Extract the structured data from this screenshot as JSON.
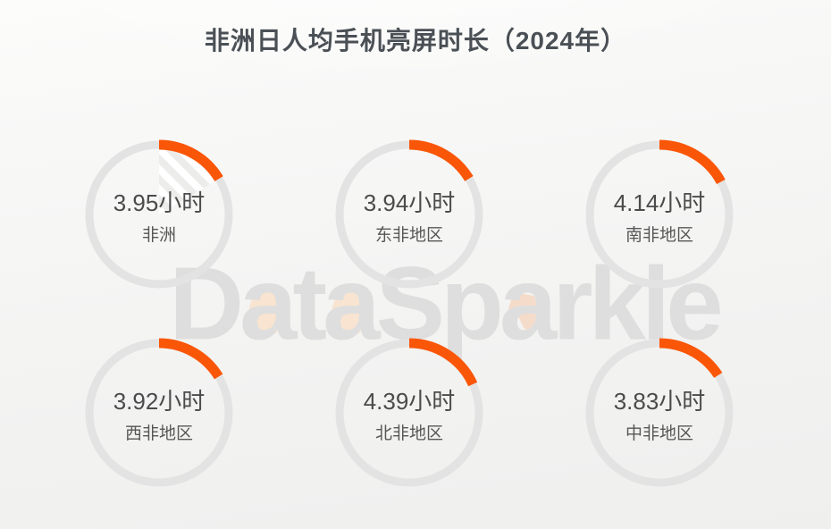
{
  "title": "非洲日人均手机亮屏时长（2024年）",
  "watermark": {
    "text": "DataSparkle",
    "parts": [
      "D",
      "a",
      "t",
      "a",
      "Sp",
      "a",
      "rkle"
    ]
  },
  "colors": {
    "accent": "#fa5607",
    "ring": "#e3e3e3",
    "title_text": "#4a5055",
    "value_text": "#4b4b4b",
    "label_text": "#575757",
    "watermark_gray": "#dbdbdb",
    "peach": "#f9e2cb",
    "peach_deep": "#f6d9c4",
    "hatch_light": "#ffffff",
    "hatch_gray": "#ececeb"
  },
  "chart_data": {
    "type": "pie",
    "subtype": "donut-gauge-grid",
    "title": "非洲日人均手机亮屏时长（2024年）",
    "unit": "小时",
    "gauge_scale_max_hours": 24,
    "arc_start": "12-oclock-clockwise",
    "legend_position": "none",
    "grid": "2 rows x 3 columns",
    "categories": [
      "非洲",
      "东非地区",
      "南非地区",
      "西非地区",
      "北非地区",
      "中非地区"
    ],
    "values": [
      3.95,
      3.94,
      4.14,
      3.92,
      4.39,
      3.83
    ],
    "items": [
      {
        "label": "非洲",
        "hours": 3.95,
        "value_label": "3.95小时",
        "hatched_wedge": true
      },
      {
        "label": "东非地区",
        "hours": 3.94,
        "value_label": "3.94小时",
        "hatched_wedge": false
      },
      {
        "label": "南非地区",
        "hours": 4.14,
        "value_label": "4.14小时",
        "hatched_wedge": false
      },
      {
        "label": "西非地区",
        "hours": 3.92,
        "value_label": "3.92小时",
        "hatched_wedge": false
      },
      {
        "label": "北非地区",
        "hours": 4.39,
        "value_label": "4.39小时",
        "hatched_wedge": false
      },
      {
        "label": "中非地区",
        "hours": 3.83,
        "value_label": "3.83小时",
        "hatched_wedge": false
      }
    ]
  }
}
